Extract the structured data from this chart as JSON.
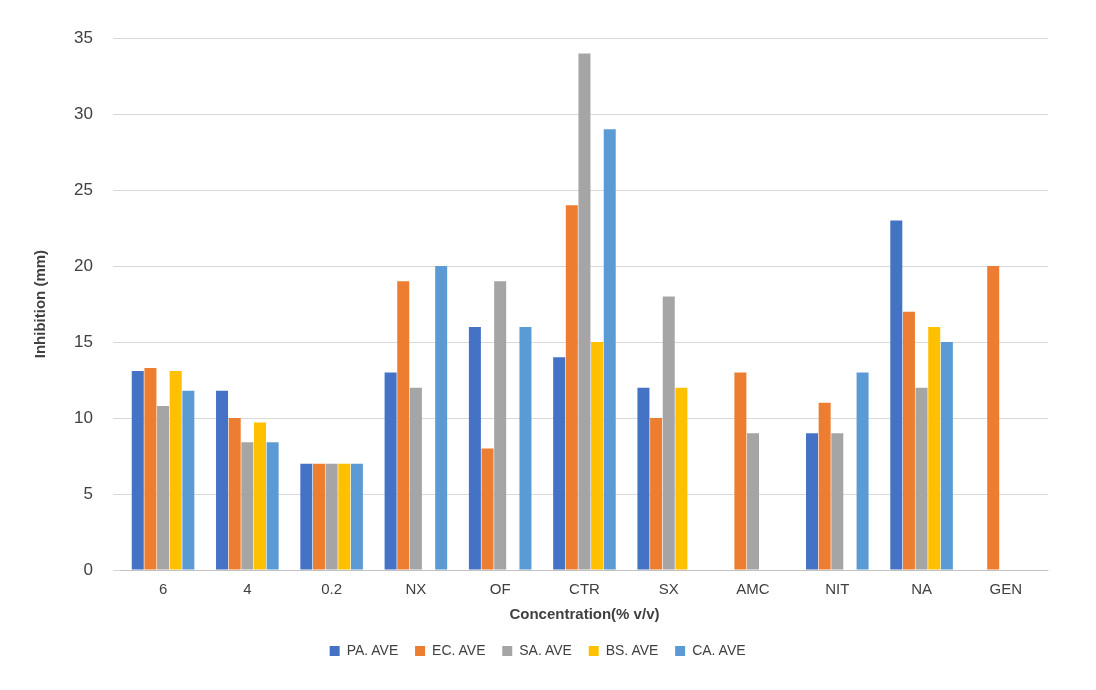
{
  "chart_data": {
    "type": "bar",
    "xlabel": "Concentration(% v/v)",
    "ylabel": "Inhibition (mm)",
    "categories": [
      "6",
      "4",
      "0.2",
      "NX",
      "OF",
      "CTR",
      "SX",
      "AMC",
      "NIT",
      "NA",
      "GEN"
    ],
    "series": [
      {
        "name": "PA. AVE",
        "color": "#4472c4",
        "values": [
          13.1,
          11.8,
          7,
          13,
          16,
          14,
          12,
          0,
          9,
          23,
          0
        ]
      },
      {
        "name": "EC. AVE",
        "color": "#ed7d31",
        "values": [
          13.3,
          10,
          7,
          19,
          8,
          24,
          10,
          13,
          11,
          17,
          20
        ]
      },
      {
        "name": "SA. AVE",
        "color": "#a5a5a5",
        "values": [
          10.8,
          8.4,
          7,
          12,
          19,
          34,
          18,
          9,
          9,
          12,
          0
        ]
      },
      {
        "name": "BS. AVE",
        "color": "#ffc000",
        "values": [
          13.1,
          9.7,
          7,
          0,
          0,
          15,
          12,
          0,
          0,
          16,
          0
        ]
      },
      {
        "name": "CA. AVE",
        "color": "#5b9bd5",
        "values": [
          11.8,
          8.4,
          7,
          20,
          16,
          29,
          0,
          0,
          13,
          15,
          0
        ]
      }
    ],
    "ylim": [
      0,
      35
    ],
    "yticks": [
      0,
      5,
      10,
      15,
      20,
      25,
      30,
      35
    ],
    "grid": "y",
    "legend": "bottom"
  }
}
